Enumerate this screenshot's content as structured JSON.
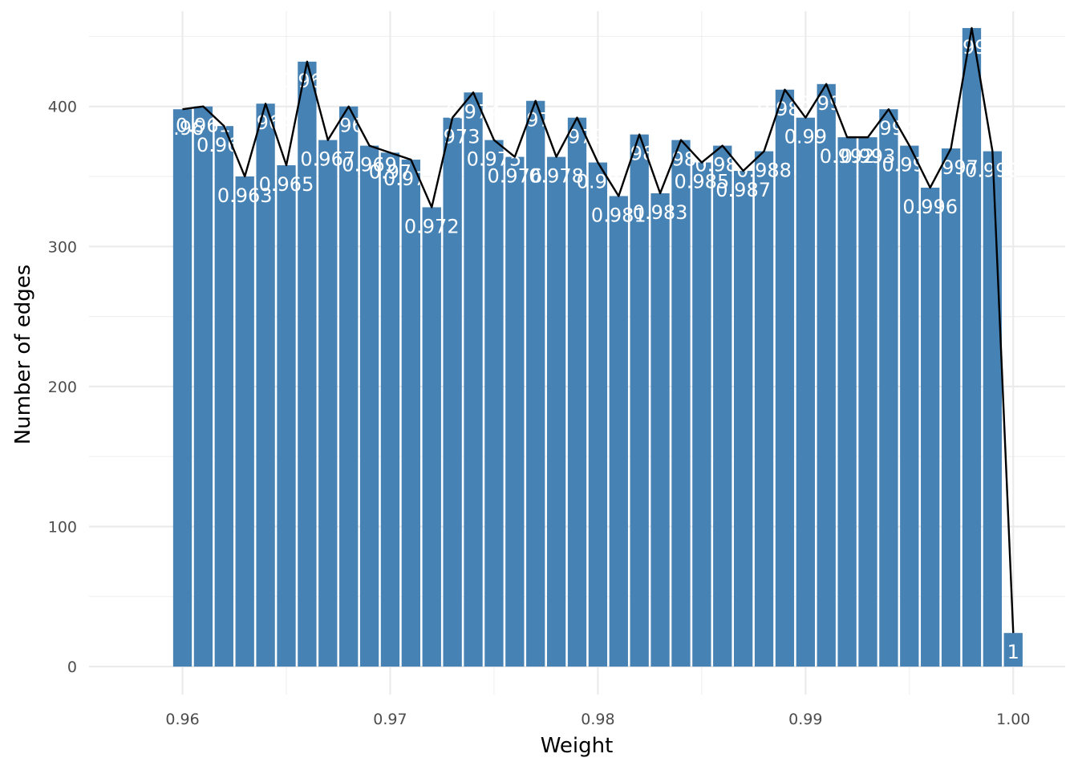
{
  "chart_data": {
    "type": "bar",
    "xlabel": "Weight",
    "ylabel": "Number of edges",
    "xlim": [
      0.9555,
      1.0025
    ],
    "ylim": [
      -20,
      468
    ],
    "x_ticks": [
      0.96,
      0.97,
      0.98,
      0.99,
      1.0
    ],
    "x_tick_labels": [
      "0.96",
      "0.97",
      "0.98",
      "0.99",
      "1.00"
    ],
    "y_ticks": [
      0,
      100,
      200,
      300,
      400
    ],
    "y_tick_labels": [
      "0",
      "100",
      "200",
      "300",
      "400"
    ],
    "grid": true,
    "bar_color": "#4682B4",
    "line_color": "#000000",
    "label_color": "#FFFFFF",
    "x": [
      0.96,
      0.961,
      0.962,
      0.963,
      0.964,
      0.965,
      0.966,
      0.967,
      0.968,
      0.969,
      0.97,
      0.971,
      0.972,
      0.973,
      0.974,
      0.975,
      0.976,
      0.977,
      0.978,
      0.979,
      0.98,
      0.981,
      0.982,
      0.983,
      0.984,
      0.985,
      0.986,
      0.987,
      0.988,
      0.989,
      0.99,
      0.991,
      0.992,
      0.993,
      0.994,
      0.995,
      0.996,
      0.997,
      0.998,
      0.999,
      1.0
    ],
    "values": [
      398,
      400,
      386,
      350,
      402,
      358,
      432,
      376,
      400,
      372,
      367,
      362,
      328,
      392,
      410,
      376,
      364,
      404,
      364,
      392,
      360,
      336,
      380,
      338,
      376,
      360,
      372,
      354,
      368,
      412,
      392,
      416,
      378,
      378,
      398,
      372,
      342,
      370,
      456,
      368,
      24
    ],
    "labels": [
      "0.96",
      "0.961",
      "0.962",
      "0.963",
      "0.964",
      "0.965",
      "0.966",
      "0.967",
      "0.968",
      "0.969",
      "0.97",
      "0.971",
      "0.972",
      "0.973",
      "0.974",
      "0.975",
      "0.976",
      "0.977",
      "0.978",
      "0.979",
      "0.98",
      "0.981",
      "0.982",
      "0.983",
      "0.984",
      "0.985",
      "0.986",
      "0.987",
      "0.988",
      "0.989",
      "0.99",
      "0.991",
      "0.992",
      "0.993",
      "0.994",
      "0.995",
      "0.996",
      "0.997",
      "0.998",
      "0.999",
      "1"
    ]
  }
}
